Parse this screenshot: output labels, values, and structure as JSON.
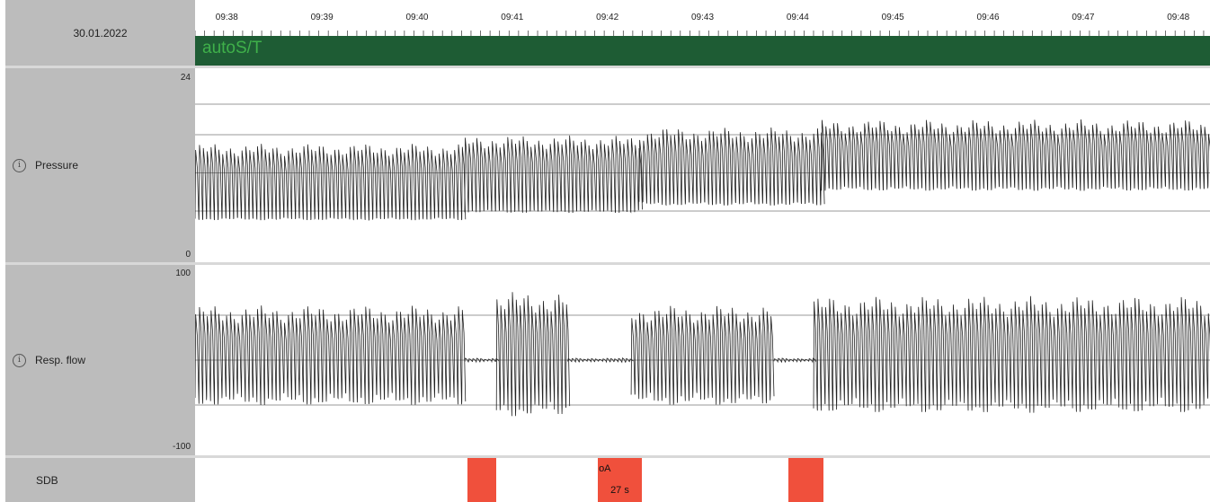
{
  "header": {
    "date": "30.01.2022",
    "mode": "autoS/T"
  },
  "rows": {
    "pressure": {
      "label": "Pressure",
      "ymax_label": "24",
      "ymin_label": "0"
    },
    "flow": {
      "label": "Resp. flow",
      "ymax_label": "100",
      "ymin_label": "-100"
    },
    "sdb": {
      "label": "SDB"
    }
  },
  "icons": {
    "info": "info-circle-icon"
  },
  "colors": {
    "mode_band": "#1e5c34",
    "mode_text": "#3fb04a",
    "event": "#f0503c",
    "trace": "#222222",
    "sidebar": "#bcbcbc"
  },
  "chart_data": [
    {
      "type": "line",
      "name_hint": "pressure",
      "x_ticks": [
        "09:38",
        "09:39",
        "09:40",
        "09:41",
        "09:42",
        "09:43",
        "09:44",
        "09:45",
        "09:46",
        "09:47",
        "09:48"
      ],
      "ylim": [
        0,
        24
      ],
      "segments": [
        {
          "from": "09:37:40",
          "to": "09:40:30",
          "low": 5,
          "high": 14
        },
        {
          "from": "09:40:30",
          "to": "09:42:20",
          "low": 6,
          "high": 15
        },
        {
          "from": "09:42:20",
          "to": "09:44:15",
          "low": 7,
          "high": 16
        },
        {
          "from": "09:44:15",
          "to": "09:48:20",
          "low": 9,
          "high": 17
        }
      ]
    },
    {
      "type": "line",
      "name_hint": "resp-flow",
      "ylim": [
        -100,
        100
      ],
      "segments": [
        {
          "from": "09:37:40",
          "to": "09:40:30",
          "amp": 60
        },
        {
          "from": "09:40:30",
          "to": "09:40:50",
          "amp": 2
        },
        {
          "from": "09:40:50",
          "to": "09:41:35",
          "amp": 75
        },
        {
          "from": "09:41:35",
          "to": "09:42:15",
          "amp": 2
        },
        {
          "from": "09:42:15",
          "to": "09:43:45",
          "amp": 60
        },
        {
          "from": "09:43:45",
          "to": "09:44:10",
          "amp": 2
        },
        {
          "from": "09:44:10",
          "to": "09:48:20",
          "amp": 70
        }
      ]
    },
    {
      "type": "table",
      "name_hint": "sdb-events",
      "events": [
        {
          "start": "09:40:32",
          "end": "09:40:50",
          "label": "",
          "duration": ""
        },
        {
          "start": "09:41:54",
          "end": "09:42:22",
          "label": "oA",
          "duration": "27 s"
        },
        {
          "start": "09:43:54",
          "end": "09:44:16",
          "label": "",
          "duration": ""
        }
      ]
    }
  ]
}
